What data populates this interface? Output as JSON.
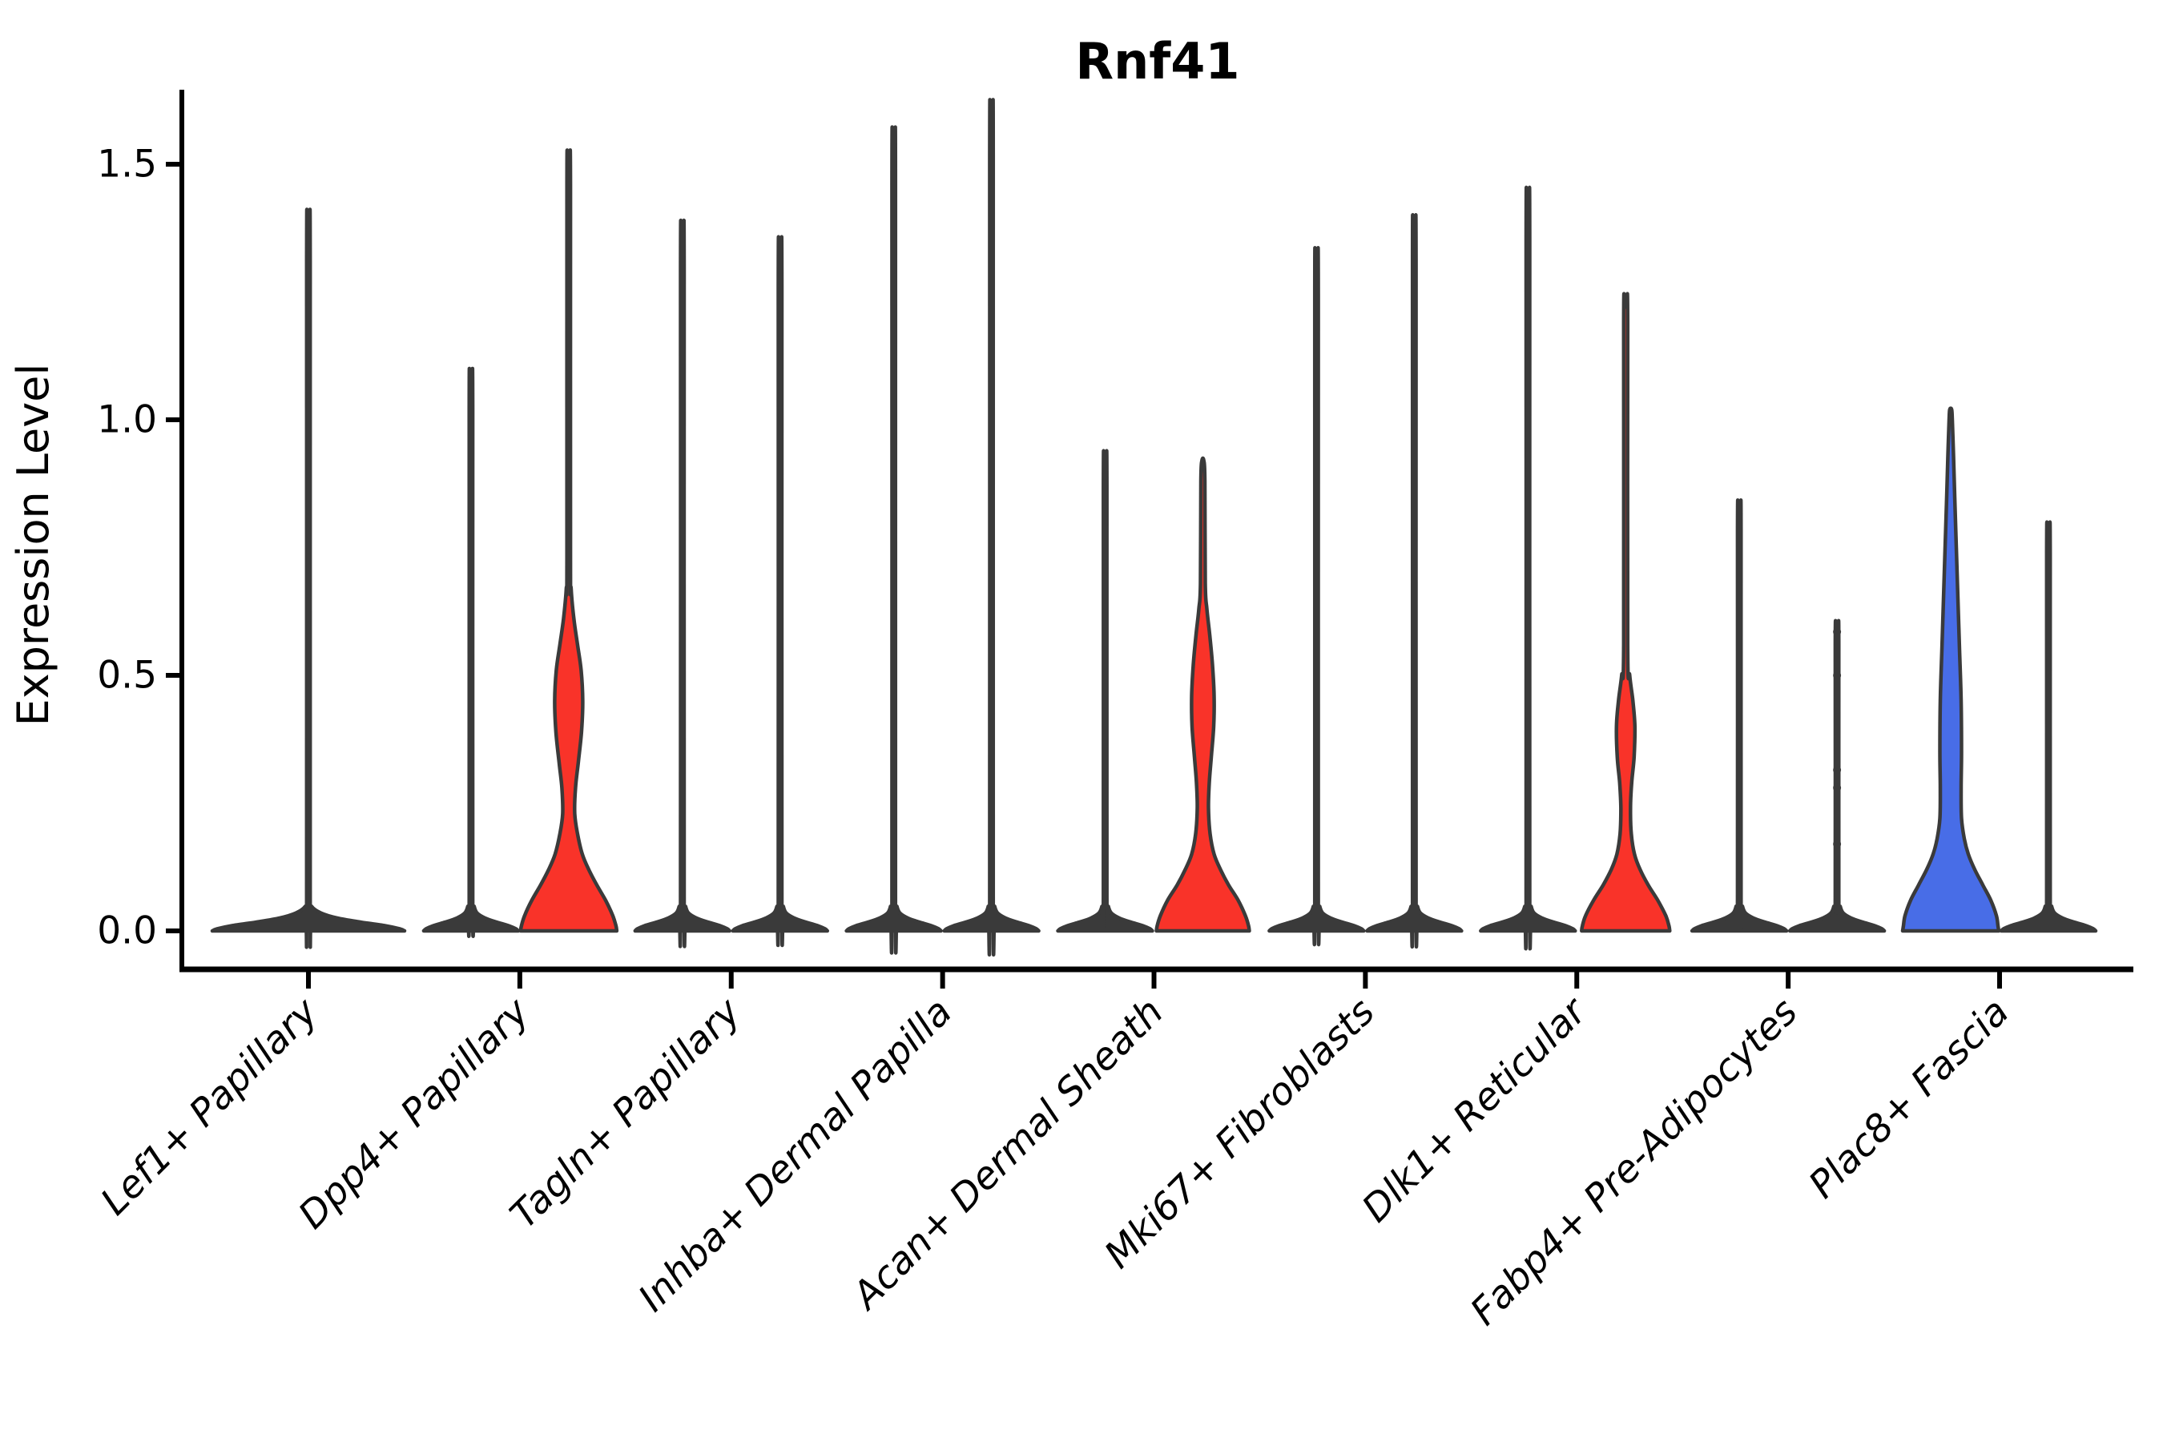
{
  "title": "Rnf41",
  "y_axis": {
    "label": "Expression Level",
    "tick_labels": [
      "0.0",
      "0.5",
      "1.0",
      "1.5"
    ],
    "tick_values": [
      0.0,
      0.5,
      1.0,
      1.5
    ]
  },
  "colors": {
    "red_fill": "#F93329",
    "blue_fill": "#486DE7",
    "violin_outline": "#3A3A3A",
    "axis": "#000000",
    "background": "#ffffff"
  },
  "chart_data": {
    "type": "violin",
    "title": "Rnf41",
    "xlabel": "",
    "ylabel": "Expression Level",
    "ylim": [
      -0.08,
      1.66
    ],
    "yticks": [
      0.0,
      0.5,
      1.0,
      1.5
    ],
    "legend": "none",
    "grid": false,
    "x_tick_rotation_degrees": 45,
    "categories": [
      "Lef1+ Papillary",
      "Dpp4+ Papillary",
      "Tagln+ Papillary",
      "Inhba+ Dermal Papilla",
      "Acan+ Dermal Sheath",
      "Mki67+ Fibroblasts",
      "Dlk1+ Reticular",
      "Fabp4+ Pre-Adipocytes",
      "Plac8+ Fascia"
    ],
    "violins": [
      {
        "category_index": 0,
        "slug": "lef1-papillary-single",
        "position": "center",
        "fill": "#3A3A3A",
        "max_expression": 1.34,
        "base_half_width": 120,
        "bulk_at_zero": true
      },
      {
        "category_index": 1,
        "slug": "dpp4-papillary-a",
        "position": "left",
        "fill": "#3A3A3A",
        "max_expression": 1.05,
        "base_half_width": 59,
        "bulk_at_zero": true
      },
      {
        "category_index": 1,
        "slug": "dpp4-papillary-b",
        "position": "right",
        "fill": "#F93329",
        "max_expression": 1.5,
        "base_half_width": 60,
        "bulk_at_zero": true,
        "profile": [
          [
            0,
            60
          ],
          [
            0.01,
            59
          ],
          [
            0.03,
            55
          ],
          [
            0.06,
            46
          ],
          [
            0.09,
            35
          ],
          [
            0.12,
            25
          ],
          [
            0.15,
            17
          ],
          [
            0.19,
            11
          ],
          [
            0.23,
            7.5
          ],
          [
            0.28,
            8.5
          ],
          [
            0.33,
            12
          ],
          [
            0.39,
            16
          ],
          [
            0.45,
            17.5
          ],
          [
            0.51,
            15.5
          ],
          [
            0.56,
            11
          ],
          [
            0.61,
            6.5
          ],
          [
            0.67,
            3
          ],
          [
            0.73,
            2.2
          ],
          [
            1.46,
            2.2
          ],
          [
            1.5,
            1.2
          ]
        ]
      },
      {
        "category_index": 2,
        "slug": "tagln-papillary-a",
        "position": "left",
        "fill": "#3A3A3A",
        "max_expression": 1.32,
        "base_half_width": 59,
        "bulk_at_zero": true
      },
      {
        "category_index": 2,
        "slug": "tagln-papillary-b",
        "position": "right",
        "fill": "#3A3A3A",
        "max_expression": 1.29,
        "base_half_width": 59,
        "bulk_at_zero": true
      },
      {
        "category_index": 3,
        "slug": "inhba-dermal-papilla-a",
        "position": "left",
        "fill": "#3A3A3A",
        "max_expression": 1.49,
        "base_half_width": 59,
        "bulk_at_zero": true
      },
      {
        "category_index": 3,
        "slug": "inhba-dermal-papilla-b",
        "position": "right",
        "fill": "#3A3A3A",
        "max_expression": 1.54,
        "base_half_width": 59,
        "bulk_at_zero": true
      },
      {
        "category_index": 4,
        "slug": "acan-dermal-sheath-a",
        "position": "left",
        "fill": "#3A3A3A",
        "max_expression": 0.9,
        "base_half_width": 59,
        "bulk_at_zero": true
      },
      {
        "category_index": 4,
        "slug": "acan-dermal-sheath-b",
        "position": "right",
        "fill": "#F93329",
        "max_expression": 0.92,
        "base_half_width": 58,
        "bulk_at_zero": true,
        "profile": [
          [
            0,
            58
          ],
          [
            0.01,
            57
          ],
          [
            0.03,
            53
          ],
          [
            0.06,
            44
          ],
          [
            0.09,
            32
          ],
          [
            0.12,
            22
          ],
          [
            0.15,
            14
          ],
          [
            0.19,
            9
          ],
          [
            0.24,
            7
          ],
          [
            0.29,
            8
          ],
          [
            0.34,
            10.5
          ],
          [
            0.4,
            13.5
          ],
          [
            0.46,
            14
          ],
          [
            0.52,
            12
          ],
          [
            0.58,
            8.5
          ],
          [
            0.63,
            5
          ],
          [
            0.68,
            3
          ],
          [
            0.88,
            2.5
          ],
          [
            0.92,
            1.2
          ]
        ]
      },
      {
        "category_index": 5,
        "slug": "mki67-fibroblasts-a",
        "position": "left",
        "fill": "#3A3A3A",
        "max_expression": 1.27,
        "base_half_width": 59,
        "bulk_at_zero": true
      },
      {
        "category_index": 5,
        "slug": "mki67-fibroblasts-b",
        "position": "right",
        "fill": "#3A3A3A",
        "max_expression": 1.33,
        "base_half_width": 59,
        "bulk_at_zero": true
      },
      {
        "category_index": 6,
        "slug": "dlk1-reticular-a",
        "position": "left",
        "fill": "#3A3A3A",
        "max_expression": 1.38,
        "base_half_width": 59,
        "bulk_at_zero": true
      },
      {
        "category_index": 6,
        "slug": "dlk1-reticular-b",
        "position": "right",
        "fill": "#F93329",
        "max_expression": 1.22,
        "base_half_width": 55,
        "bulk_at_zero": true,
        "profile": [
          [
            0,
            55
          ],
          [
            0.01,
            54
          ],
          [
            0.03,
            50
          ],
          [
            0.06,
            40
          ],
          [
            0.09,
            28
          ],
          [
            0.12,
            18
          ],
          [
            0.15,
            11
          ],
          [
            0.19,
            7
          ],
          [
            0.24,
            6
          ],
          [
            0.29,
            7.5
          ],
          [
            0.34,
            10.5
          ],
          [
            0.4,
            11.5
          ],
          [
            0.45,
            9
          ],
          [
            0.5,
            5
          ],
          [
            0.56,
            2.5
          ],
          [
            1.19,
            2.5
          ],
          [
            1.22,
            1.2
          ]
        ]
      },
      {
        "category_index": 7,
        "slug": "fabp4-pre-adipocytes-a",
        "position": "left",
        "fill": "#3A3A3A",
        "max_expression": 0.81,
        "base_half_width": 59,
        "bulk_at_zero": true
      },
      {
        "category_index": 7,
        "slug": "fabp4-pre-adipocytes-b",
        "position": "right",
        "fill": "#3A3A3A",
        "max_expression": 0.59,
        "base_half_width": 59,
        "bulk_at_zero": true,
        "point_values": [
          0.585,
          0.5,
          0.315,
          0.28,
          0.17,
          0.04
        ]
      },
      {
        "category_index": 8,
        "slug": "plac8-fascia-a",
        "position": "left",
        "fill": "#486DE7",
        "max_expression": 1.02,
        "base_half_width": 60,
        "bulk_at_zero": true,
        "profile": [
          [
            0,
            60
          ],
          [
            0.01,
            59
          ],
          [
            0.03,
            57
          ],
          [
            0.06,
            50
          ],
          [
            0.09,
            40
          ],
          [
            0.12,
            30
          ],
          [
            0.15,
            22
          ],
          [
            0.18,
            17
          ],
          [
            0.22,
            13.5
          ],
          [
            0.28,
            13
          ],
          [
            0.35,
            13.5
          ],
          [
            0.45,
            13
          ],
          [
            0.55,
            11
          ],
          [
            0.65,
            9
          ],
          [
            0.75,
            7
          ],
          [
            0.85,
            5
          ],
          [
            0.93,
            3.5
          ],
          [
            1.0,
            2
          ],
          [
            1.02,
            1.2
          ]
        ]
      },
      {
        "category_index": 8,
        "slug": "plac8-fascia-b",
        "position": "right",
        "fill": "#3A3A3A",
        "max_expression": 0.77,
        "base_half_width": 59,
        "bulk_at_zero": true
      }
    ]
  }
}
